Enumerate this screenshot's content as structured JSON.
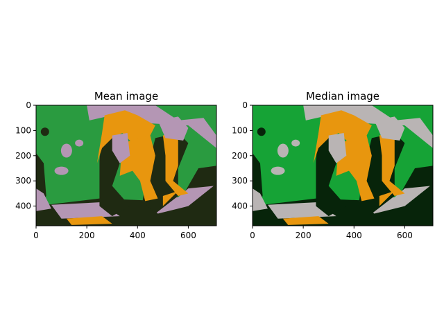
{
  "chart_data": [
    {
      "type": "heatmap",
      "title": "Mean image",
      "xlim": [
        0,
        711
      ],
      "ylim": [
        478,
        0
      ],
      "x_ticks": [
        0,
        200,
        400,
        600
      ],
      "y_ticks": [
        0,
        100,
        200,
        300,
        400
      ],
      "palette": {
        "background": "#2a9b40",
        "dark": "#1f2a12",
        "light": "#b496b4",
        "orange": "#e8960e"
      }
    },
    {
      "type": "heatmap",
      "title": "Median image",
      "xlim": [
        0,
        711
      ],
      "ylim": [
        478,
        0
      ],
      "x_ticks": [
        0,
        200,
        400,
        600
      ],
      "y_ticks": [
        0,
        100,
        200,
        300,
        400
      ],
      "palette": {
        "background": "#16a336",
        "dark": "#07240a",
        "light": "#b9b4b4",
        "orange": "#e8960e"
      }
    }
  ]
}
